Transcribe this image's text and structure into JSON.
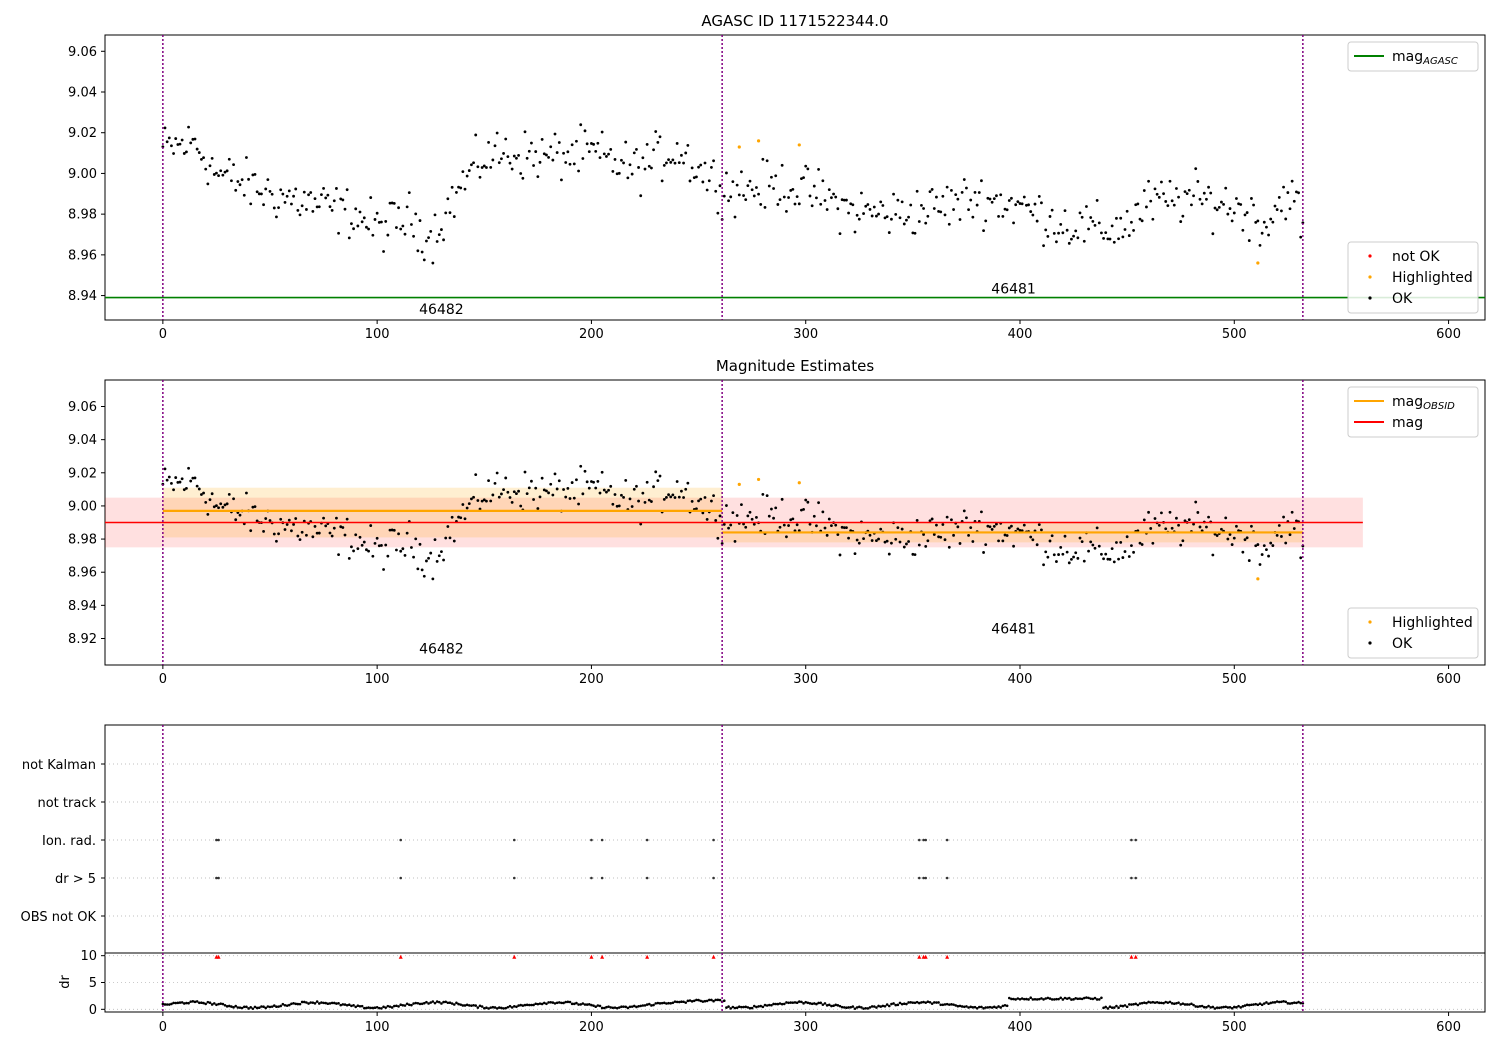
{
  "chart_data": [
    {
      "type": "scatter",
      "title": "AGASC ID 1171522344.0",
      "xlim": [
        -27,
        617
      ],
      "ylim": [
        8.928,
        9.068
      ],
      "x_ticks": [
        0,
        100,
        200,
        300,
        400,
        500,
        600
      ],
      "y_ticks": [
        8.94,
        8.96,
        8.98,
        9.0,
        9.02,
        9.04,
        9.06
      ],
      "grid": false,
      "obsid_boundaries": [
        0,
        261,
        532
      ],
      "obsid_labels": [
        {
          "text": "46482",
          "x": 130,
          "y": 8.931
        },
        {
          "text": "46481",
          "x": 397,
          "y": 8.941
        }
      ],
      "hlines": [
        {
          "name": "mag_AGASC",
          "y": 8.939,
          "color": "#008000"
        }
      ],
      "legend_top": {
        "placement": "upper right",
        "entries": [
          {
            "name": "mag",
            "sub": "AGASC",
            "color": "#008000",
            "kind": "line"
          }
        ]
      },
      "legend_bottom": {
        "placement": "lower right",
        "entries": [
          {
            "name": "not OK",
            "color": "#ff0000",
            "kind": "dot"
          },
          {
            "name": "Highlighted",
            "color": "#ffa500",
            "kind": "dot"
          },
          {
            "name": "OK",
            "color": "#000000",
            "kind": "dot"
          }
        ]
      },
      "highlighted_points": [
        [
          269,
          9.013
        ],
        [
          278,
          9.016
        ],
        [
          297,
          9.014
        ],
        [
          511,
          8.956
        ]
      ]
    },
    {
      "type": "scatter",
      "title": "Magnitude Estimates",
      "xlim": [
        -27,
        617
      ],
      "ylim": [
        8.904,
        9.076
      ],
      "x_ticks": [
        0,
        100,
        200,
        300,
        400,
        500,
        600
      ],
      "y_ticks": [
        8.92,
        8.94,
        8.96,
        8.98,
        9.0,
        9.02,
        9.04,
        9.06
      ],
      "grid": false,
      "obsid_boundaries": [
        0,
        261,
        532
      ],
      "obsid_labels": [
        {
          "text": "46482",
          "x": 130,
          "y": 8.911
        },
        {
          "text": "46481",
          "x": 397,
          "y": 8.923
        }
      ],
      "mag": {
        "value": 8.99,
        "band": [
          8.975,
          9.005
        ],
        "x_range": [
          -27,
          560
        ],
        "color": "#ff0000"
      },
      "mag_obsid": [
        {
          "x_range": [
            0,
            261
          ],
          "value": 8.997,
          "band": [
            8.981,
            9.011
          ]
        },
        {
          "x_range": [
            261,
            532
          ],
          "value": 8.984,
          "band": [
            8.978,
            8.99
          ]
        }
      ],
      "legend_top": {
        "placement": "upper right",
        "entries": [
          {
            "name": "mag",
            "sub": "OBSID",
            "color": "#ffa500",
            "kind": "line"
          },
          {
            "name": "mag",
            "sub": "",
            "color": "#ff0000",
            "kind": "line"
          }
        ]
      },
      "legend_bottom": {
        "placement": "lower right",
        "entries": [
          {
            "name": "Highlighted",
            "color": "#ffa500",
            "kind": "dot"
          },
          {
            "name": "OK",
            "color": "#000000",
            "kind": "dot"
          }
        ]
      },
      "highlighted_points": [
        [
          269,
          9.013
        ],
        [
          278,
          9.016
        ],
        [
          297,
          9.014
        ],
        [
          511,
          8.956
        ]
      ]
    },
    {
      "type": "scatter",
      "title": "",
      "xlim": [
        -27,
        617
      ],
      "x_ticks": [
        0,
        100,
        200,
        300,
        400,
        500,
        600
      ],
      "obsid_boundaries": [
        0,
        261,
        532
      ],
      "flag_categories": [
        "OBS not OK",
        "dr > 5",
        "Ion. rad.",
        "not track",
        "not Kalman"
      ],
      "flag_events": {
        "dr > 5": [
          25,
          26,
          111,
          164,
          200,
          205,
          226,
          257,
          353,
          355,
          356,
          366,
          452,
          454
        ],
        "Ion. rad.": [
          25,
          26,
          111,
          164,
          200,
          205,
          226,
          257,
          353,
          355,
          356,
          366,
          452,
          454
        ]
      },
      "dr_panel": {
        "ylabel": "dr",
        "y_ticks": [
          0,
          5,
          10
        ],
        "ylim": [
          -0.5,
          10.5
        ],
        "flag_marker_y": 9.8
      }
    }
  ]
}
